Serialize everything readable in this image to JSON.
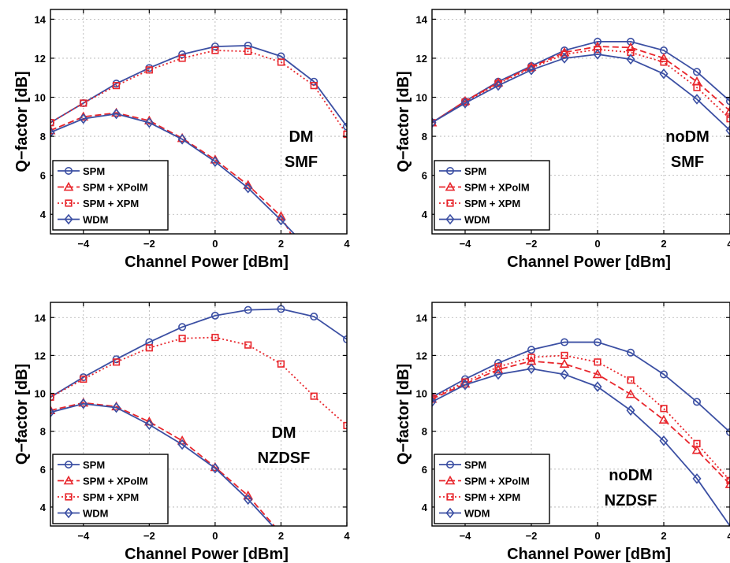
{
  "legend_labels": [
    "SPM",
    "SPM + XPolM",
    "SPM + XPM",
    "WDM"
  ],
  "colors": {
    "blue": "#3b4fa3",
    "red": "#e8262c",
    "grid": "#b0b0b0"
  },
  "chart_data": [
    {
      "type": "line",
      "annotation": [
        "DM",
        "SMF"
      ],
      "xlabel": "Channel Power [dBm]",
      "ylabel": "Q−factor [dB]",
      "xlim": [
        -5,
        4
      ],
      "ylim": [
        3,
        14.5
      ],
      "xticks": [
        -4,
        -2,
        0,
        2,
        4
      ],
      "yticks": [
        4,
        6,
        8,
        10,
        12,
        14
      ],
      "grid": true,
      "legend_position": "bottom-left",
      "series": [
        {
          "name": "SPM",
          "x": [
            -5,
            -4,
            -3,
            -2,
            -1,
            0,
            1,
            2,
            3,
            4
          ],
          "y": [
            8.7,
            9.7,
            10.7,
            11.5,
            12.2,
            12.6,
            12.65,
            12.1,
            10.8,
            8.5
          ]
        },
        {
          "name": "SPM + XPolM",
          "x": [
            -5,
            -4,
            -3,
            -2,
            -1,
            0,
            1,
            2,
            2.3
          ],
          "y": [
            8.3,
            9.0,
            9.2,
            8.8,
            7.9,
            6.8,
            5.5,
            3.9,
            3.0
          ]
        },
        {
          "name": "SPM + XPM",
          "x": [
            -5,
            -4,
            -3,
            -2,
            -1,
            0,
            1,
            2,
            3,
            4
          ],
          "y": [
            8.7,
            9.7,
            10.6,
            11.4,
            12.0,
            12.4,
            12.35,
            11.8,
            10.6,
            8.1
          ]
        },
        {
          "name": "WDM",
          "x": [
            -5,
            -4,
            -3,
            -2,
            -1,
            0,
            1,
            2,
            2.4
          ],
          "y": [
            8.2,
            8.9,
            9.15,
            8.7,
            7.85,
            6.7,
            5.35,
            3.7,
            3.0
          ]
        }
      ]
    },
    {
      "type": "line",
      "annotation": [
        "noDM",
        "SMF"
      ],
      "xlabel": "Channel Power [dBm]",
      "ylabel": "Q−factor [dB]",
      "xlim": [
        -5,
        4
      ],
      "ylim": [
        3,
        14.5
      ],
      "xticks": [
        -4,
        -2,
        0,
        2,
        4
      ],
      "yticks": [
        4,
        6,
        8,
        10,
        12,
        14
      ],
      "grid": true,
      "legend_position": "bottom-left",
      "series": [
        {
          "name": "SPM",
          "x": [
            -5,
            -4,
            -3,
            -2,
            -1,
            0,
            1,
            2,
            3,
            4
          ],
          "y": [
            8.7,
            9.8,
            10.8,
            11.6,
            12.4,
            12.85,
            12.85,
            12.4,
            11.3,
            9.8
          ]
        },
        {
          "name": "SPM + XPolM",
          "x": [
            -5,
            -4,
            -3,
            -2,
            -1,
            0,
            1,
            2,
            3,
            4
          ],
          "y": [
            8.7,
            9.8,
            10.75,
            11.55,
            12.3,
            12.6,
            12.55,
            12.0,
            10.8,
            9.3
          ]
        },
        {
          "name": "SPM + XPM",
          "x": [
            -5,
            -4,
            -3,
            -2,
            -1,
            0,
            1,
            2,
            3,
            4
          ],
          "y": [
            8.7,
            9.75,
            10.7,
            11.5,
            12.2,
            12.45,
            12.3,
            11.8,
            10.5,
            8.9
          ]
        },
        {
          "name": "WDM",
          "x": [
            -5,
            -4,
            -3,
            -2,
            -1,
            0,
            1,
            2,
            3,
            4
          ],
          "y": [
            8.7,
            9.7,
            10.6,
            11.4,
            12.0,
            12.2,
            11.95,
            11.2,
            9.9,
            8.3
          ]
        }
      ]
    },
    {
      "type": "line",
      "annotation": [
        "DM",
        "NZDSF"
      ],
      "xlabel": "Channel Power [dBm]",
      "ylabel": "Q−factor [dB]",
      "xlim": [
        -5,
        4
      ],
      "ylim": [
        3,
        14.8
      ],
      "xticks": [
        -4,
        -2,
        0,
        2,
        4
      ],
      "yticks": [
        4,
        6,
        8,
        10,
        12,
        14
      ],
      "grid": true,
      "legend_position": "bottom-left",
      "series": [
        {
          "name": "SPM",
          "x": [
            -5,
            -4,
            -3,
            -2,
            -1,
            0,
            1,
            2,
            3,
            4
          ],
          "y": [
            9.8,
            10.85,
            11.8,
            12.7,
            13.5,
            14.1,
            14.4,
            14.45,
            14.05,
            12.85
          ]
        },
        {
          "name": "SPM + XPolM",
          "x": [
            -5,
            -4,
            -3,
            -2,
            -1,
            0,
            1,
            1.8
          ],
          "y": [
            9.1,
            9.5,
            9.3,
            8.5,
            7.5,
            6.1,
            4.6,
            3.0
          ]
        },
        {
          "name": "SPM + XPM",
          "x": [
            -5,
            -4,
            -3,
            -2,
            -1,
            0,
            1,
            2,
            3,
            4
          ],
          "y": [
            9.8,
            10.75,
            11.65,
            12.4,
            12.9,
            12.95,
            12.55,
            11.55,
            9.85,
            8.3
          ]
        },
        {
          "name": "WDM",
          "x": [
            -5,
            -4,
            -3,
            -2,
            -1,
            0,
            1,
            1.75
          ],
          "y": [
            9.0,
            9.45,
            9.25,
            8.35,
            7.3,
            6.05,
            4.4,
            3.0
          ]
        }
      ]
    },
    {
      "type": "line",
      "annotation": [
        "noDM",
        "NZDSF"
      ],
      "xlabel": "Channel Power [dBm]",
      "ylabel": "Q−factor [dB]",
      "xlim": [
        -5,
        4
      ],
      "ylim": [
        3,
        14.8
      ],
      "xticks": [
        -4,
        -2,
        0,
        2,
        4
      ],
      "yticks": [
        4,
        6,
        8,
        10,
        12,
        14
      ],
      "grid": true,
      "legend_position": "bottom-left",
      "series": [
        {
          "name": "SPM",
          "x": [
            -5,
            -4,
            -3,
            -2,
            -1,
            0,
            1,
            2,
            3,
            4
          ],
          "y": [
            9.8,
            10.75,
            11.6,
            12.3,
            12.7,
            12.7,
            12.15,
            11.0,
            9.55,
            7.95
          ]
        },
        {
          "name": "SPM + XPolM",
          "x": [
            -5,
            -4,
            -3,
            -2,
            -1,
            0,
            1,
            2,
            3,
            4
          ],
          "y": [
            9.7,
            10.5,
            11.25,
            11.7,
            11.55,
            11.0,
            9.95,
            8.6,
            7.0,
            5.2
          ]
        },
        {
          "name": "SPM + XPM",
          "x": [
            -5,
            -4,
            -3,
            -2,
            -1,
            0,
            1,
            2,
            3,
            4
          ],
          "y": [
            9.75,
            10.6,
            11.4,
            11.9,
            12.0,
            11.65,
            10.7,
            9.2,
            7.35,
            5.4
          ]
        },
        {
          "name": "WDM",
          "x": [
            -5,
            -4,
            -3,
            -2,
            -1,
            0,
            1,
            2,
            3,
            4
          ],
          "y": [
            9.55,
            10.45,
            11.0,
            11.3,
            11.0,
            10.35,
            9.1,
            7.5,
            5.5,
            3.0
          ]
        }
      ]
    }
  ]
}
